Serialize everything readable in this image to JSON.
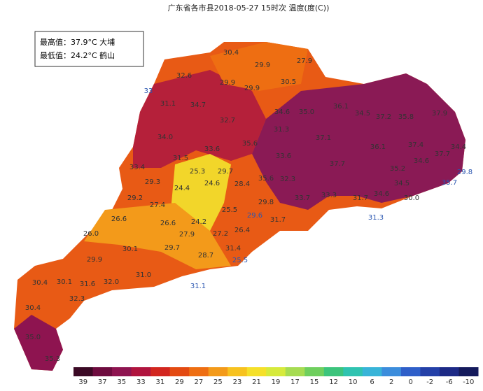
{
  "title": "广东省各市县2018-05-27 15时次 温度(度(C))",
  "info_box": {
    "max_line": "最高值：37.9°C 大埔",
    "min_line": "最低值：24.2°C 鹤山"
  },
  "stations": [
    "30.4",
    "27.9",
    "29.9",
    "32.6",
    "29.9",
    "29.9",
    "30.5",
    "33",
    "31.1",
    "34.7",
    "34.6",
    "35.0",
    "36.1",
    "34.5",
    "37.2",
    "35.8",
    "37.9",
    "32.7",
    "31.3",
    "34.0",
    "35.6",
    "37.1",
    "36.1",
    "37.4",
    "34.4",
    "37.7",
    "31.5",
    "33.6",
    "33.6",
    "37.7",
    "35.2",
    "34.6",
    "33.4",
    "25.3",
    "29.7",
    "29.8",
    "24.6",
    "28.4",
    "35.7",
    "35.6",
    "29.3",
    "24.4",
    "32.3",
    "34.5",
    "33.7",
    "33.3",
    "31.7",
    "34.6",
    "30.0",
    "29.2",
    "27.4",
    "25.5",
    "29.8",
    "26.6",
    "26.6",
    "24.2",
    "29.6",
    "31.7",
    "31.3",
    "26.0",
    "27.9",
    "27.2",
    "26.4",
    "30.1",
    "29.7",
    "31.4",
    "28.7",
    "25.5",
    "29.9",
    "31.0",
    "30.4",
    "30.1",
    "31.6",
    "32.0",
    "31.1",
    "32.3",
    "30.4",
    "35.0",
    "35.3"
  ],
  "legend": {
    "ticks": [
      "39",
      "37",
      "35",
      "33",
      "31",
      "29",
      "27",
      "25",
      "23",
      "21",
      "19",
      "17",
      "15",
      "12",
      "10",
      "6",
      "2",
      "0",
      "-2",
      "-6",
      "-10"
    ],
    "colors": [
      "#3b0a25",
      "#6e0c3f",
      "#8e1450",
      "#b0143e",
      "#d2261f",
      "#e34a12",
      "#ee6e12",
      "#f39a1a",
      "#f7c21f",
      "#f5e02a",
      "#d6ea3c",
      "#a6dc52",
      "#6fcf5e",
      "#3cc47c",
      "#2fc3b0",
      "#38b4d8",
      "#3c8ddc",
      "#2f5fc9",
      "#2440a8",
      "#1d2a86",
      "#141a5c"
    ]
  }
}
